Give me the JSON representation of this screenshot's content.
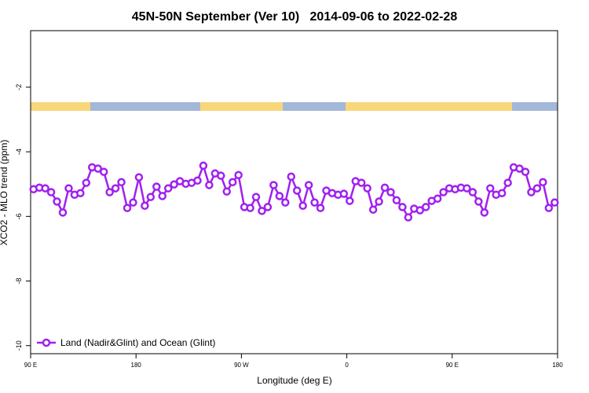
{
  "chart_data": {
    "type": "line",
    "title": "45N-50N September (Ver 10)   2014-09-06 to 2022-02-28",
    "x_label": "Longitude (deg E)",
    "y_label": "XCO2 - MLO trend (ppm)",
    "legend_position": "bottom-left",
    "xlim": [
      90,
      540
    ],
    "xticks": [
      {
        "value": 90,
        "label": "90 E"
      },
      180,
      {
        "value": 270,
        "label": "90 W"
      },
      {
        "value": 360,
        "label": "0"
      },
      {
        "value": 450,
        "label": "90 E"
      },
      {
        "value": 540,
        "label": "180"
      }
    ],
    "ylim": [
      -10.25,
      -0.25
    ],
    "yticks": [
      -2,
      -4,
      -6,
      -8,
      -10
    ],
    "x": [
      92.5,
      97.5,
      102.5,
      107.5,
      112.5,
      117.5,
      122.5,
      127.5,
      132.5,
      137.5,
      142.5,
      147.5,
      152.5,
      157.5,
      162.5,
      167.5,
      172.5,
      177.5,
      182.5,
      187.5,
      192.5,
      197.5,
      202.5,
      207.5,
      212.5,
      217.5,
      222.5,
      227.5,
      232.5,
      237.5,
      242.5,
      247.5,
      252.5,
      257.5,
      262.5,
      267.5,
      272.5,
      277.5,
      282.5,
      287.5,
      292.5,
      297.5,
      302.5,
      307.5,
      312.5,
      317.5,
      322.5,
      327.5,
      332.5,
      337.5,
      342.5,
      347.5,
      352.5,
      357.5,
      362.5,
      367.5,
      372.5,
      377.5,
      382.5,
      387.5,
      392.5,
      397.5,
      402.5,
      407.5,
      412.5,
      417.5,
      422.5,
      427.5,
      432.5,
      437.5,
      442.5,
      447.5,
      452.5,
      457.5,
      462.5,
      467.5,
      472.5,
      477.5,
      482.5,
      487.5,
      492.5,
      497.5,
      502.5,
      507.5,
      512.5,
      517.5,
      522.5,
      527.5,
      532.5,
      537.5
    ],
    "series": [
      {
        "name": "Land (Nadir&Glint) and Ocean (Glint)",
        "color": "#a020f0",
        "values": [
          -5.16,
          -5.11,
          -5.13,
          -5.25,
          -5.54,
          -5.88,
          -5.13,
          -5.33,
          -5.28,
          -4.96,
          -4.48,
          -4.52,
          -4.62,
          -5.25,
          -5.13,
          -4.94,
          -5.74,
          -5.57,
          -4.79,
          -5.67,
          -5.4,
          -5.08,
          -5.37,
          -5.13,
          -5.01,
          -4.91,
          -4.99,
          -4.96,
          -4.89,
          -4.43,
          -5.03,
          -4.67,
          -4.74,
          -5.23,
          -4.94,
          -4.72,
          -5.71,
          -5.74,
          -5.4,
          -5.83,
          -5.71,
          -5.03,
          -5.37,
          -5.57,
          -4.77,
          -5.2,
          -5.67,
          -5.03,
          -5.57,
          -5.74,
          -5.2,
          -5.28,
          -5.33,
          -5.3,
          -5.52,
          -4.91,
          -4.96,
          -5.13,
          -5.79,
          -5.54,
          -5.11,
          -5.25,
          -5.5,
          -5.71,
          -6.03,
          -5.76,
          -5.81,
          -5.71,
          -5.52,
          -5.45,
          -5.25,
          -5.13,
          -5.16,
          -5.11,
          -5.13,
          -5.25,
          -5.54,
          -5.88,
          -5.13,
          -5.33,
          -5.28,
          -4.96,
          -4.48,
          -4.52,
          -4.62,
          -5.25,
          -5.13,
          -4.94,
          -5.74,
          -5.57
        ]
      }
    ]
  }
}
